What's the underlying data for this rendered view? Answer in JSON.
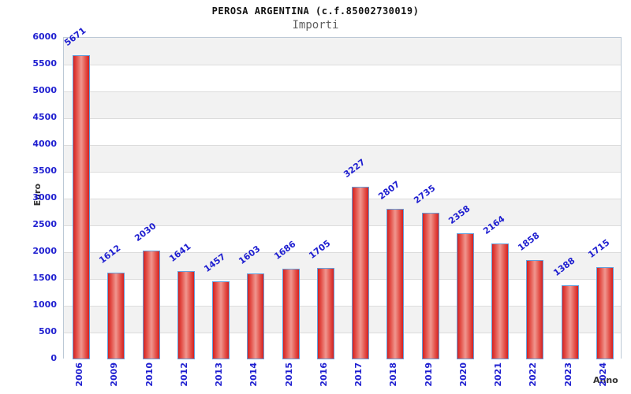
{
  "header": {
    "title": "PEROSA ARGENTINA (c.f.85002730019)",
    "subtitle": "Importi"
  },
  "chart_data": {
    "type": "bar",
    "title": "PEROSA ARGENTINA (c.f.85002730019)",
    "subtitle": "Importi",
    "xlabel": "Anno",
    "ylabel": "Euro",
    "categories": [
      "2006",
      "2009",
      "2010",
      "2012",
      "2013",
      "2014",
      "2015",
      "2016",
      "2017",
      "2018",
      "2019",
      "2020",
      "2021",
      "2022",
      "2023",
      "2024"
    ],
    "values": [
      5671,
      1612,
      2030,
      1641,
      1457,
      1603,
      1686,
      1705,
      3227,
      2807,
      2735,
      2358,
      2164,
      1858,
      1388,
      1715
    ],
    "ylim": [
      0,
      6000
    ],
    "ytick_step": 500,
    "yticks": [
      0,
      500,
      1000,
      1500,
      2000,
      2500,
      3000,
      3500,
      4000,
      4500,
      5000,
      5500,
      6000
    ],
    "grid": "horizontal gridlines with alternating gray/white bands",
    "legend_position": "none",
    "value_labels": "above bars, rotated, blue",
    "colors": {
      "bar_edge": "#d42121",
      "bar_center": "#f0968f",
      "bar_border": "#64a0dc",
      "tick_label_blue": "#1f1fd0",
      "band_gray": "#f2f2f2",
      "band_white": "#ffffff",
      "gridline": "#dcdcdc",
      "plot_border": "#bcc9d6",
      "axis_label": "#333333",
      "title_color": "#111111",
      "subtitle_color": "#606060"
    }
  }
}
